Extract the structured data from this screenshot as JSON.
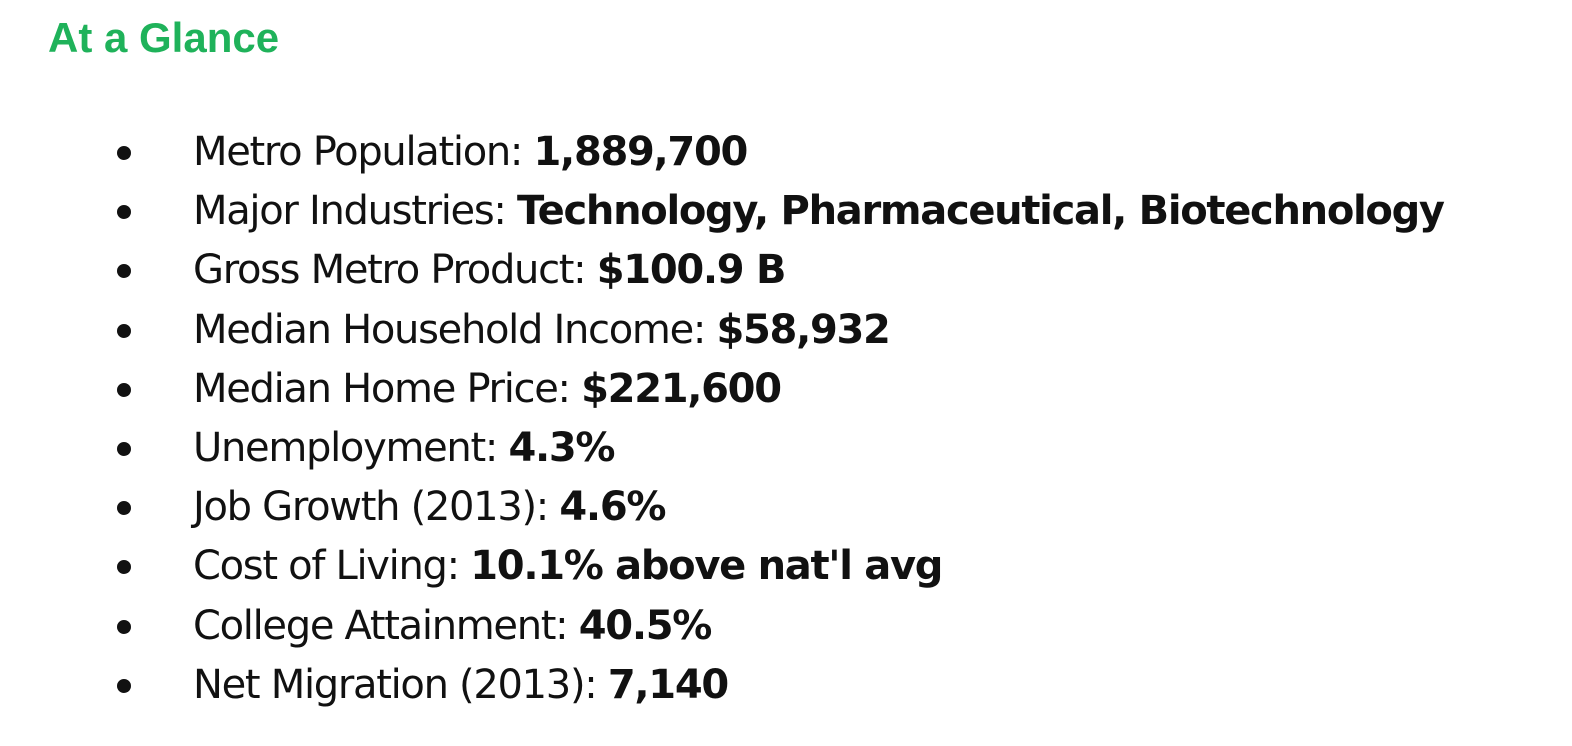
{
  "heading": "At a Glance",
  "facts": [
    {
      "label": "Metro Population:",
      "value": "1,889,700"
    },
    {
      "label": "Major Industries:",
      "value": "Technology, Pharmaceutical, Biotechnology"
    },
    {
      "label": "Gross Metro Product:",
      "value": "$100.9 B"
    },
    {
      "label": "Median Household Income:",
      "value": "$58,932"
    },
    {
      "label": "Median Home Price:",
      "value": "$221,600"
    },
    {
      "label": "Unemployment:",
      "value": "4.3%"
    },
    {
      "label": "Job Growth (2013):",
      "value": "4.6%"
    },
    {
      "label": "Cost of Living:",
      "value": "10.1% above nat'l avg"
    },
    {
      "label": "College Attainment:",
      "value": "40.5%"
    },
    {
      "label": "Net Migration (2013):",
      "value": "7,140"
    }
  ],
  "colors": {
    "heading": "#1fb25a",
    "text": "#111111"
  }
}
